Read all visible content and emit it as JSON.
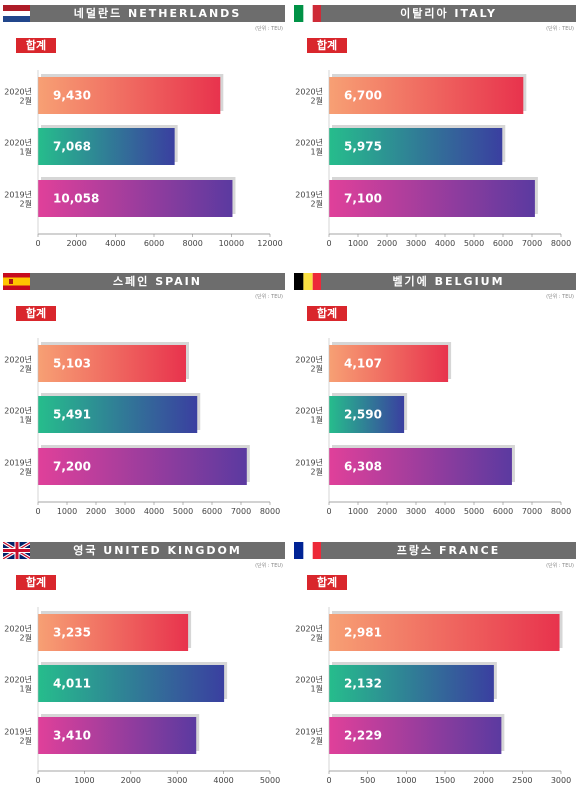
{
  "unit_label": "(단위 : TEU)",
  "badge_label": "합계",
  "colors": {
    "header_bg": "#6d6d6d",
    "badge": "#d9262c",
    "bar1": [
      "#f7a074",
      "#e8334d"
    ],
    "bar2": [
      "#26bd8c",
      "#3a3fa0"
    ],
    "bar3": [
      "#e0409a",
      "#5b3aa0"
    ]
  },
  "panels": [
    {
      "title": "네덜란드 NETHERLANDS",
      "flag": "netherlands-flag",
      "chart_data": {
        "type": "bar",
        "orientation": "horizontal",
        "categories": [
          [
            "2020년",
            "2월"
          ],
          [
            "2020년",
            "1월"
          ],
          [
            "2019년",
            "2월"
          ]
        ],
        "values": [
          9430,
          7068,
          10058
        ],
        "value_labels": [
          "9,430",
          "7,068",
          "10,058"
        ],
        "xlim": [
          0,
          12000
        ],
        "xticks": [
          0,
          2000,
          4000,
          6000,
          8000,
          10000,
          12000
        ]
      }
    },
    {
      "title": "이탈리아 ITALY",
      "flag": "italy-flag",
      "chart_data": {
        "type": "bar",
        "orientation": "horizontal",
        "categories": [
          [
            "2020년",
            "2월"
          ],
          [
            "2020년",
            "1월"
          ],
          [
            "2019년",
            "2월"
          ]
        ],
        "values": [
          6700,
          5975,
          7100
        ],
        "value_labels": [
          "6,700",
          "5,975",
          "7,100"
        ],
        "xlim": [
          0,
          8000
        ],
        "xticks": [
          0,
          1000,
          2000,
          3000,
          4000,
          5000,
          6000,
          7000,
          8000
        ]
      }
    },
    {
      "title": "스페인 SPAIN",
      "flag": "spain-flag",
      "chart_data": {
        "type": "bar",
        "orientation": "horizontal",
        "categories": [
          [
            "2020년",
            "2월"
          ],
          [
            "2020년",
            "1월"
          ],
          [
            "2019년",
            "2월"
          ]
        ],
        "values": [
          5103,
          5491,
          7200
        ],
        "value_labels": [
          "5,103",
          "5,491",
          "7,200"
        ],
        "xlim": [
          0,
          8000
        ],
        "xticks": [
          0,
          1000,
          2000,
          3000,
          4000,
          5000,
          6000,
          7000,
          8000
        ]
      }
    },
    {
      "title": "벨기에 BELGIUM",
      "flag": "belgium-flag",
      "chart_data": {
        "type": "bar",
        "orientation": "horizontal",
        "categories": [
          [
            "2020년",
            "2월"
          ],
          [
            "2020년",
            "1월"
          ],
          [
            "2019년",
            "2월"
          ]
        ],
        "values": [
          4107,
          2590,
          6308
        ],
        "value_labels": [
          "4,107",
          "2,590",
          "6,308"
        ],
        "xlim": [
          0,
          8000
        ],
        "xticks": [
          0,
          1000,
          2000,
          3000,
          4000,
          5000,
          6000,
          7000,
          8000
        ]
      }
    },
    {
      "title": "영국 UNITED KINGDOM",
      "flag": "uk-flag",
      "chart_data": {
        "type": "bar",
        "orientation": "horizontal",
        "categories": [
          [
            "2020년",
            "2월"
          ],
          [
            "2020년",
            "1월"
          ],
          [
            "2019년",
            "2월"
          ]
        ],
        "values": [
          3235,
          4011,
          3410
        ],
        "value_labels": [
          "3,235",
          "4,011",
          "3,410"
        ],
        "xlim": [
          0,
          5000
        ],
        "xticks": [
          0,
          1000,
          2000,
          3000,
          4000,
          5000
        ]
      }
    },
    {
      "title": "프랑스 FRANCE",
      "flag": "france-flag",
      "chart_data": {
        "type": "bar",
        "orientation": "horizontal",
        "categories": [
          [
            "2020년",
            "2월"
          ],
          [
            "2020년",
            "1월"
          ],
          [
            "2019년",
            "2월"
          ]
        ],
        "values": [
          2981,
          2132,
          2229
        ],
        "value_labels": [
          "2,981",
          "2,132",
          "2,229"
        ],
        "xlim": [
          0,
          3000
        ],
        "xticks": [
          0,
          500,
          1000,
          1500,
          2000,
          2500,
          3000
        ]
      }
    }
  ]
}
